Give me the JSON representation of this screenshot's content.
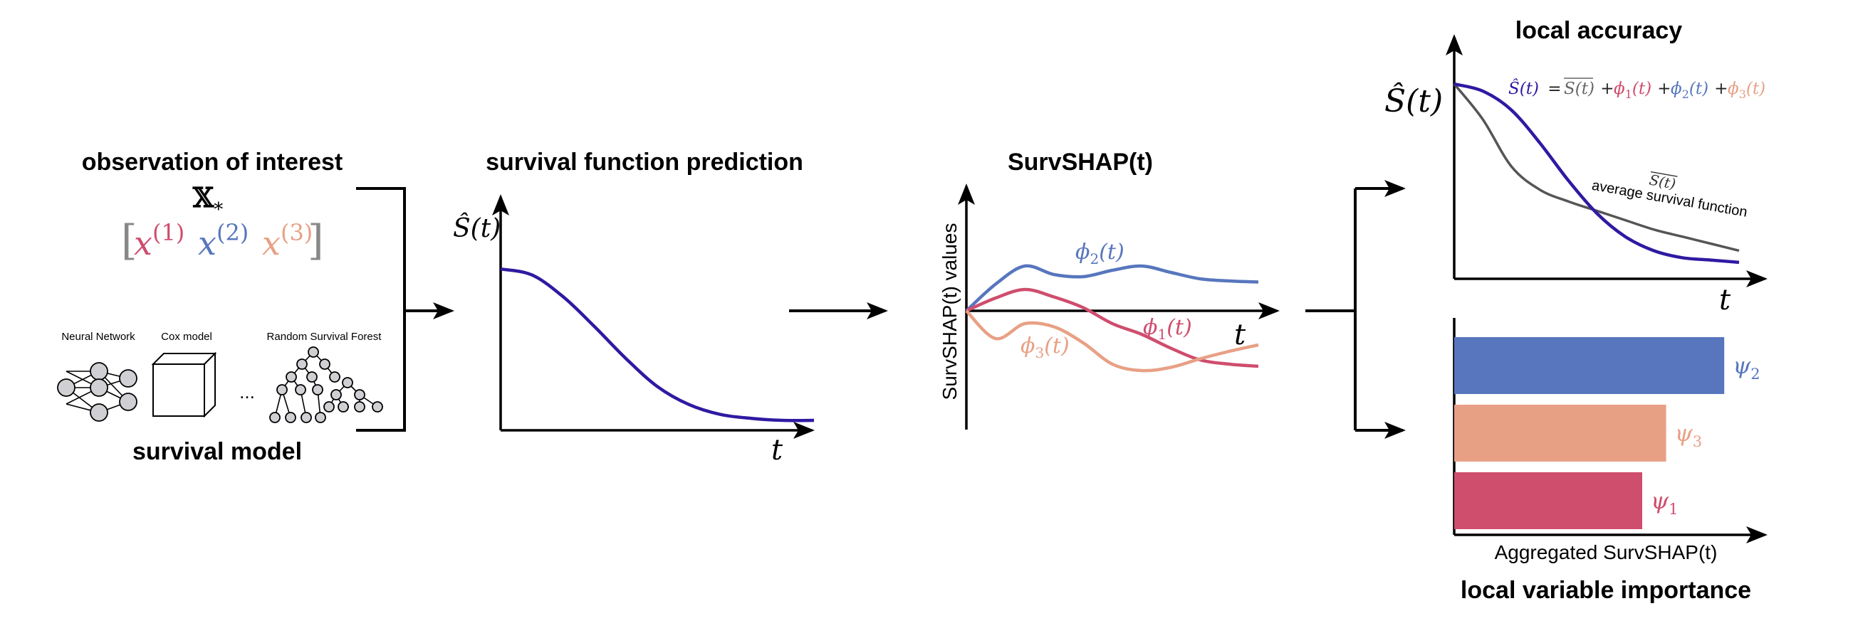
{
  "colors": {
    "red": "#cf4d6d",
    "blue": "#5776bd",
    "salmon": "#e8a085",
    "navy": "#2e1aa2",
    "gray": "#555555",
    "black": "#000000"
  },
  "obs": {
    "title": "observation of interest",
    "xstar": "𝕏",
    "xstar_sub": "*",
    "bracket_open": "[",
    "bracket_close": "]",
    "features": [
      {
        "base": "x",
        "sup": "(1)"
      },
      {
        "base": "x",
        "sup": "(2)"
      },
      {
        "base": "x",
        "sup": "(3)"
      }
    ]
  },
  "model": {
    "title": "survival model",
    "types": [
      "Neural Network",
      "Cox model",
      "Random Survival Forest"
    ],
    "ellipsis": "..."
  },
  "sfp": {
    "title": "survival function prediction",
    "ylabel": "Ŝ(t)",
    "xlabel": "t"
  },
  "survshap": {
    "title": "SurvSHAP(t)",
    "ylabel": "SurvSHAP(t) values",
    "xlabel": "t",
    "labels": {
      "phi1": {
        "base": "ϕ",
        "sub": "1",
        "arg": "(t)"
      },
      "phi2": {
        "base": "ϕ",
        "sub": "2",
        "arg": "(t)"
      },
      "phi3": {
        "base": "ϕ",
        "sub": "3",
        "arg": "(t)"
      }
    }
  },
  "local_accuracy": {
    "title": "local accuracy",
    "ylabel": "Ŝ(t)",
    "xlabel": "t",
    "formula": {
      "lhs": "Ŝ(t)",
      "eq": " = ",
      "avg": "S(t)",
      "plus": " + ",
      "phi": "ϕ",
      "arg": "(t)",
      "subs": [
        "1",
        "2",
        "3"
      ]
    },
    "avg_label": "average survival function",
    "avg_symbol": "S(t)"
  },
  "importance": {
    "title": "local variable importance",
    "xlabel": "Aggregated SurvSHAP(t)",
    "psi": "ψ"
  },
  "chart_data": [
    {
      "type": "line",
      "title": "survival function prediction",
      "ylabel": "Ŝ(t)",
      "xlabel": "t",
      "xlim": [
        0,
        10
      ],
      "ylim": [
        0,
        1
      ],
      "series": [
        {
          "name": "Ŝ(t)",
          "color": "#2e1aa2",
          "x": [
            0,
            1,
            2,
            3,
            4,
            5,
            6,
            7,
            8,
            9,
            10
          ],
          "values": [
            0.81,
            0.78,
            0.67,
            0.52,
            0.36,
            0.22,
            0.13,
            0.08,
            0.06,
            0.05,
            0.05
          ]
        }
      ]
    },
    {
      "type": "line",
      "title": "SurvSHAP(t)",
      "ylabel": "SurvSHAP(t) values",
      "xlabel": "t",
      "xlim": [
        0,
        10
      ],
      "ylim": [
        -1,
        1
      ],
      "series": [
        {
          "name": "ϕ2(t)",
          "color": "#5776bd",
          "x": [
            0,
            1,
            2,
            3,
            4,
            5,
            6,
            7,
            8,
            9,
            10
          ],
          "values": [
            0,
            0.25,
            0.42,
            0.34,
            0.32,
            0.38,
            0.42,
            0.36,
            0.3,
            0.28,
            0.27
          ]
        },
        {
          "name": "ϕ1(t)",
          "color": "#cf4d6d",
          "x": [
            0,
            1,
            2,
            3,
            4,
            5,
            6,
            7,
            8,
            9,
            10
          ],
          "values": [
            0,
            0.12,
            0.2,
            0.13,
            0.03,
            -0.12,
            -0.22,
            -0.35,
            -0.46,
            -0.5,
            -0.52
          ]
        },
        {
          "name": "ϕ3(t)",
          "color": "#e8a085",
          "x": [
            0,
            1,
            2,
            3,
            4,
            5,
            6,
            7,
            8,
            9,
            10
          ],
          "values": [
            0,
            -0.26,
            -0.12,
            -0.15,
            -0.3,
            -0.5,
            -0.56,
            -0.53,
            -0.45,
            -0.38,
            -0.32
          ]
        }
      ]
    },
    {
      "type": "line",
      "title": "local accuracy",
      "ylabel": "Ŝ(t)",
      "xlabel": "t",
      "xlim": [
        0,
        10
      ],
      "ylim": [
        0,
        1
      ],
      "series": [
        {
          "name": "Ŝ(t)",
          "color": "#2e1aa2",
          "x": [
            0,
            1,
            2,
            3,
            4,
            5,
            6,
            7,
            8,
            9,
            10
          ],
          "values": [
            0.83,
            0.8,
            0.72,
            0.58,
            0.42,
            0.28,
            0.18,
            0.12,
            0.09,
            0.08,
            0.07
          ]
        },
        {
          "name": "average survival function",
          "color": "#555555",
          "x": [
            0,
            1,
            2,
            3,
            4,
            5,
            6,
            7,
            8,
            9,
            10
          ],
          "values": [
            0.83,
            0.68,
            0.48,
            0.38,
            0.33,
            0.29,
            0.25,
            0.21,
            0.18,
            0.15,
            0.12
          ]
        }
      ]
    },
    {
      "type": "bar",
      "orientation": "horizontal",
      "title": "local variable importance",
      "xlabel": "Aggregated SurvSHAP(t)",
      "xlim": [
        0,
        1
      ],
      "categories": [
        "ψ2",
        "ψ3",
        "ψ1"
      ],
      "values": [
        0.79,
        0.62,
        0.55
      ],
      "colors": [
        "#5776bd",
        "#e8a085",
        "#cf4d6d"
      ]
    }
  ]
}
